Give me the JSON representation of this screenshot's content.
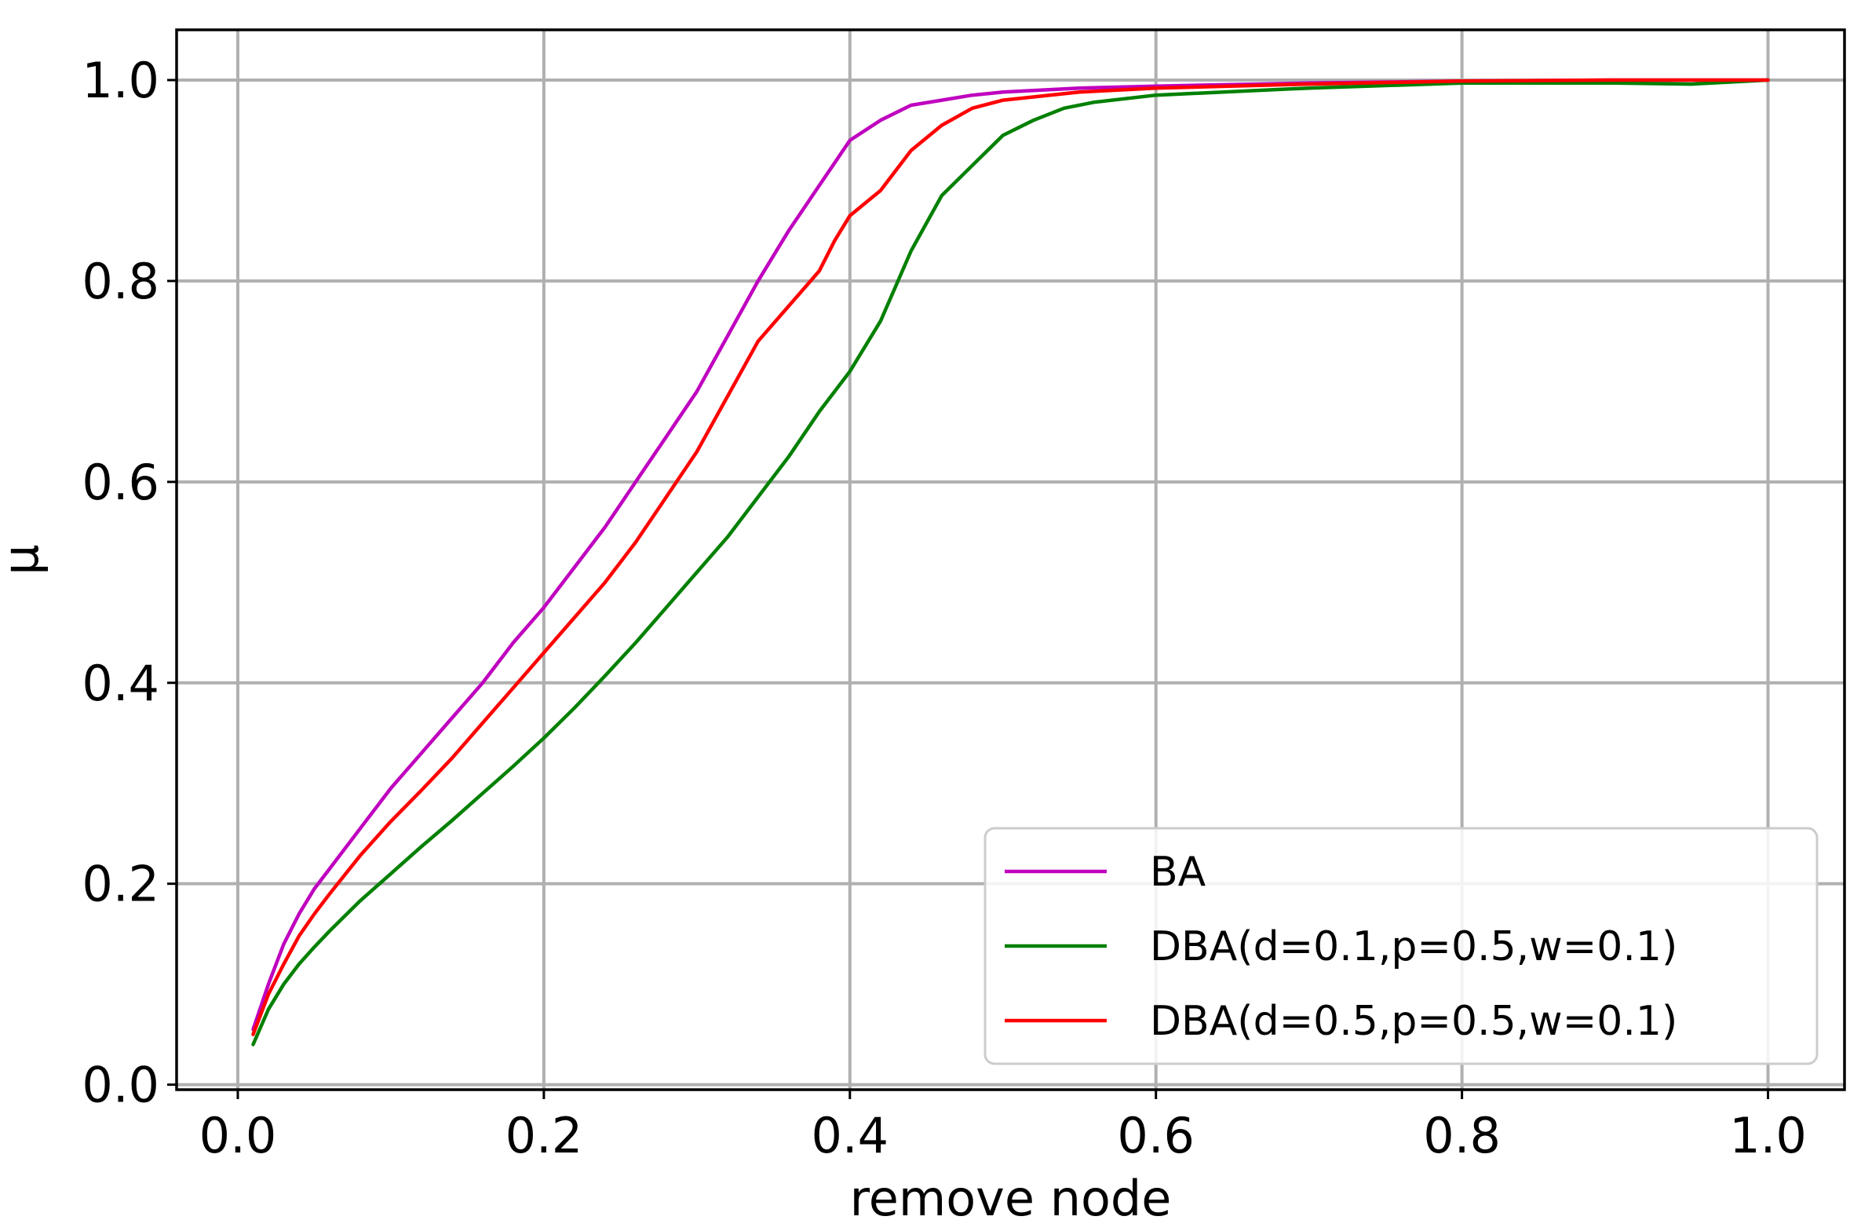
{
  "chart_data": {
    "type": "line",
    "xlabel": "remove node",
    "ylabel": "μ",
    "xlim": [
      -0.04,
      1.05
    ],
    "ylim": [
      -0.005,
      1.05
    ],
    "xticks": [
      0.0,
      0.2,
      0.4,
      0.6,
      0.8,
      1.0
    ],
    "xtick_labels": [
      "0.0",
      "0.2",
      "0.4",
      "0.6",
      "0.8",
      "1.0"
    ],
    "yticks": [
      0.0,
      0.2,
      0.4,
      0.6,
      0.8,
      1.0
    ],
    "ytick_labels": [
      "0.0",
      "0.2",
      "0.4",
      "0.6",
      "0.8",
      "1.0"
    ],
    "grid": true,
    "legend_position": "lower right",
    "series": [
      {
        "name": "BA",
        "color": "#bf00bf",
        "x": [
          0.01,
          0.02,
          0.03,
          0.04,
          0.05,
          0.06,
          0.08,
          0.1,
          0.12,
          0.14,
          0.16,
          0.18,
          0.2,
          0.22,
          0.24,
          0.26,
          0.28,
          0.3,
          0.32,
          0.34,
          0.36,
          0.38,
          0.4,
          0.42,
          0.44,
          0.46,
          0.48,
          0.5,
          0.55,
          0.6,
          0.7,
          0.8,
          0.9,
          1.0
        ],
        "values": [
          0.055,
          0.1,
          0.14,
          0.17,
          0.195,
          0.215,
          0.255,
          0.295,
          0.33,
          0.365,
          0.4,
          0.44,
          0.475,
          0.515,
          0.555,
          0.6,
          0.645,
          0.69,
          0.745,
          0.8,
          0.85,
          0.895,
          0.94,
          0.96,
          0.975,
          0.98,
          0.985,
          0.988,
          0.992,
          0.994,
          0.997,
          0.999,
          1.0,
          1.0
        ]
      },
      {
        "name": "DBA(d=0.1,p=0.5,w=0.1)",
        "color": "#008000",
        "x": [
          0.01,
          0.02,
          0.03,
          0.04,
          0.05,
          0.06,
          0.08,
          0.1,
          0.12,
          0.14,
          0.16,
          0.18,
          0.2,
          0.22,
          0.24,
          0.26,
          0.28,
          0.3,
          0.32,
          0.34,
          0.36,
          0.38,
          0.4,
          0.42,
          0.44,
          0.46,
          0.48,
          0.5,
          0.52,
          0.54,
          0.56,
          0.6,
          0.7,
          0.8,
          0.9,
          0.95,
          1.0
        ],
        "values": [
          0.04,
          0.075,
          0.1,
          0.12,
          0.137,
          0.153,
          0.183,
          0.21,
          0.237,
          0.263,
          0.29,
          0.317,
          0.345,
          0.375,
          0.407,
          0.44,
          0.475,
          0.51,
          0.545,
          0.585,
          0.625,
          0.67,
          0.71,
          0.76,
          0.83,
          0.885,
          0.915,
          0.945,
          0.96,
          0.972,
          0.978,
          0.985,
          0.992,
          0.997,
          0.997,
          0.996,
          1.0
        ]
      },
      {
        "name": "DBA(d=0.5,p=0.5,w=0.1)",
        "color": "#ff0000",
        "x": [
          0.01,
          0.02,
          0.03,
          0.04,
          0.05,
          0.06,
          0.08,
          0.1,
          0.12,
          0.14,
          0.16,
          0.18,
          0.2,
          0.22,
          0.24,
          0.26,
          0.28,
          0.3,
          0.32,
          0.34,
          0.36,
          0.38,
          0.39,
          0.4,
          0.42,
          0.44,
          0.46,
          0.48,
          0.5,
          0.55,
          0.6,
          0.7,
          0.8,
          0.9,
          1.0
        ],
        "values": [
          0.05,
          0.09,
          0.12,
          0.148,
          0.17,
          0.19,
          0.228,
          0.262,
          0.293,
          0.325,
          0.36,
          0.395,
          0.43,
          0.465,
          0.5,
          0.54,
          0.585,
          0.63,
          0.685,
          0.74,
          0.775,
          0.81,
          0.84,
          0.865,
          0.89,
          0.93,
          0.955,
          0.972,
          0.98,
          0.988,
          0.992,
          0.996,
          0.999,
          1.0,
          1.0
        ]
      }
    ]
  }
}
